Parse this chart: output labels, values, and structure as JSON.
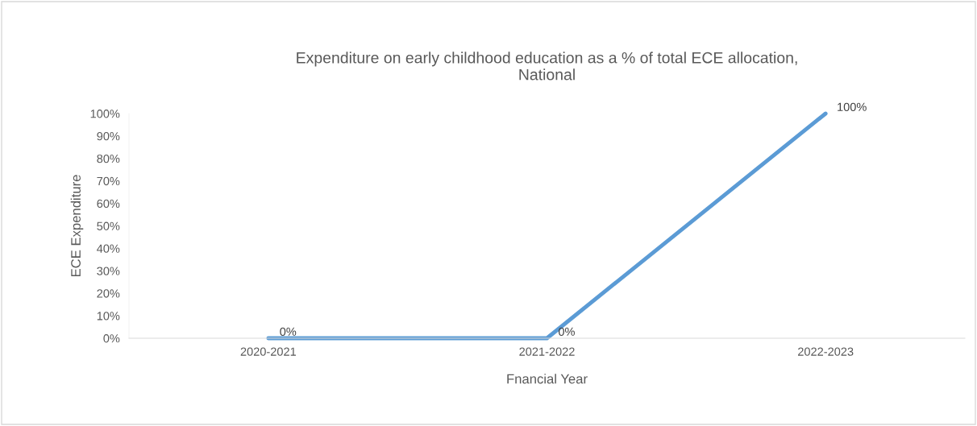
{
  "chart_data": {
    "type": "line",
    "title": "Expenditure on early childhood education as a % of total ECE allocation,\nNational",
    "xlabel": "Fnancial Year",
    "ylabel": "ECE Expenditure",
    "categories": [
      "2020-2021",
      "2021-2022",
      "2022-2023"
    ],
    "series": [
      {
        "color": "#5b9bd5",
        "values": [
          0,
          0,
          100
        ],
        "value_labels": [
          "0%",
          "0%",
          "100%"
        ]
      }
    ],
    "ylim": [
      0,
      100
    ],
    "yticks": [
      {
        "value": 0,
        "label": "0%"
      },
      {
        "value": 10,
        "label": "10%"
      },
      {
        "value": 20,
        "label": "20%"
      },
      {
        "value": 30,
        "label": "30%"
      },
      {
        "value": 40,
        "label": "40%"
      },
      {
        "value": 50,
        "label": "50%"
      },
      {
        "value": 60,
        "label": "60%"
      },
      {
        "value": 70,
        "label": "70%"
      },
      {
        "value": 80,
        "label": "80%"
      },
      {
        "value": 90,
        "label": "90%"
      },
      {
        "value": 100,
        "label": "100%"
      }
    ],
    "grid": false,
    "marker": "none",
    "line_style": "solid"
  }
}
